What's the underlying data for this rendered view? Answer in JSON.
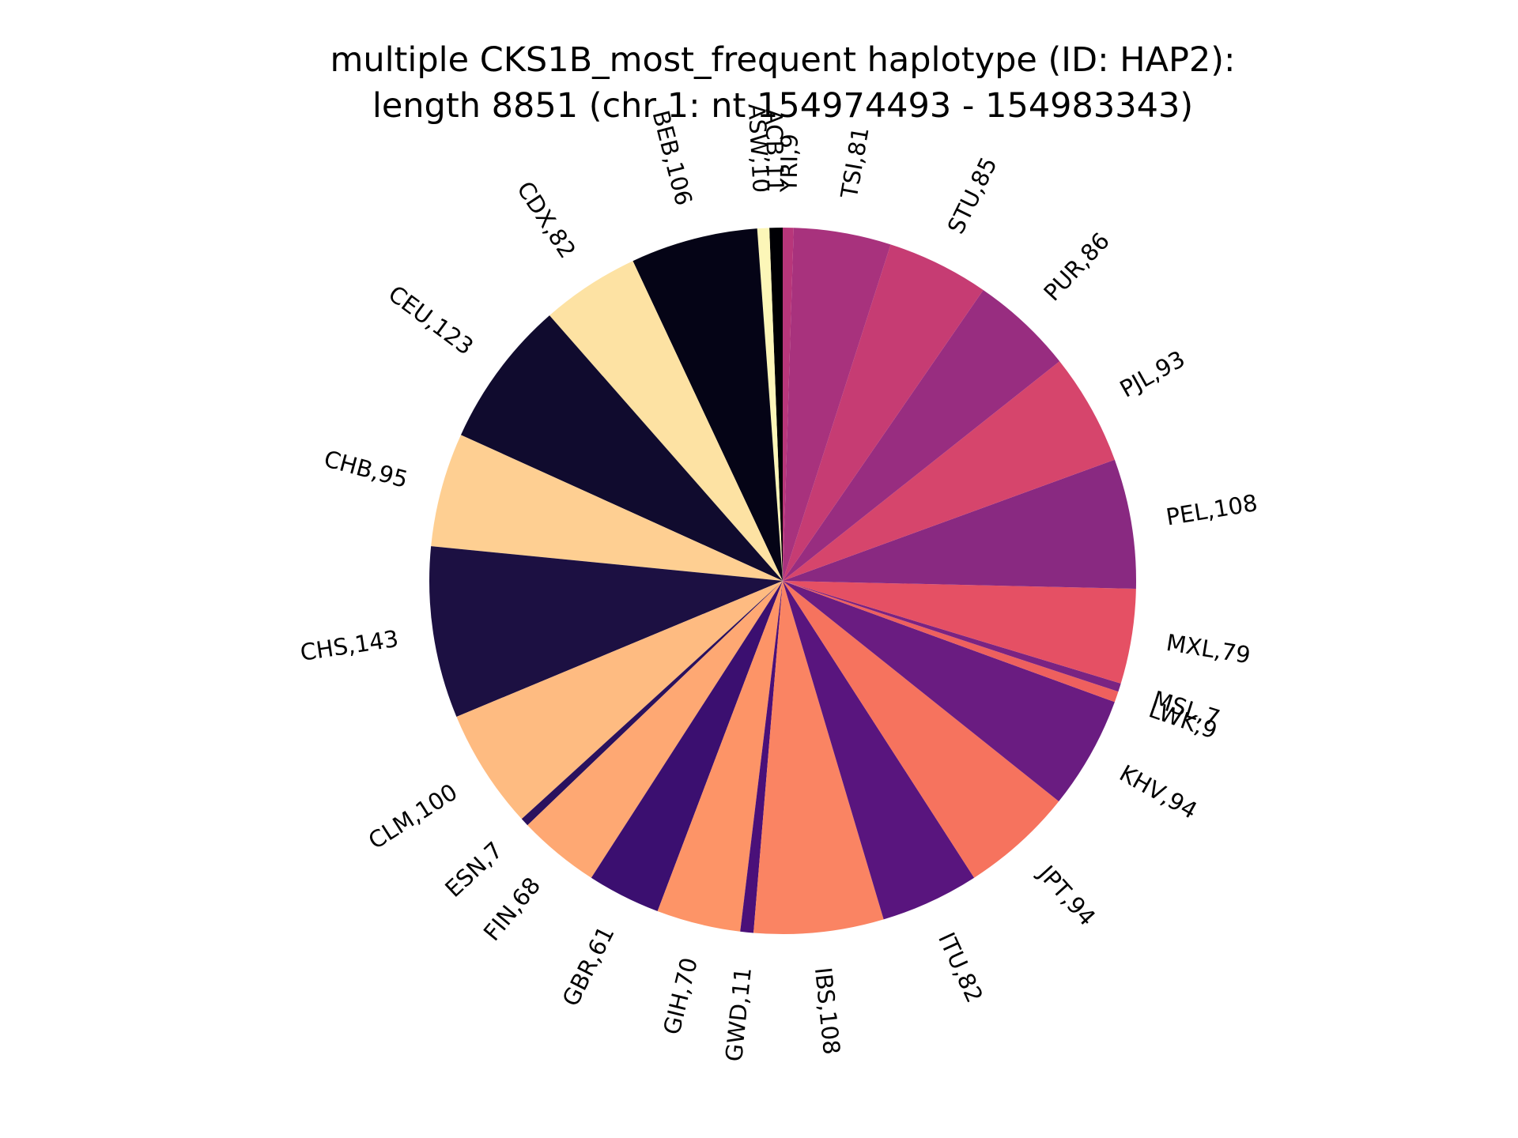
{
  "chart_data": {
    "type": "pie",
    "title": "multiple CKS1B_most_frequent haplotype (ID: HAP2):",
    "subtitle": "length 8851 (chr 1: nt 154974493 - 154983343)",
    "colormap": "magma",
    "slices": [
      {
        "label": "ACB,11",
        "value": 11,
        "color": "#000004"
      },
      {
        "label": "ASW,10",
        "value": 10,
        "color": "#fcf6b8"
      },
      {
        "label": "BEB,106",
        "value": 106,
        "color": "#050416"
      },
      {
        "label": "CDX,82",
        "value": 82,
        "color": "#fde2a3"
      },
      {
        "label": "CEU,123",
        "value": 123,
        "color": "#100b2e"
      },
      {
        "label": "CHB,95",
        "value": 95,
        "color": "#fecf92"
      },
      {
        "label": "CHS,143",
        "value": 143,
        "color": "#1c1042"
      },
      {
        "label": "CLM,100",
        "value": 100,
        "color": "#febb81"
      },
      {
        "label": "ESN,7",
        "value": 7,
        "color": "#2a115e"
      },
      {
        "label": "FIN,68",
        "value": 68,
        "color": "#fea873"
      },
      {
        "label": "GBR,61",
        "value": 61,
        "color": "#3b0f70"
      },
      {
        "label": "GIH,70",
        "value": 70,
        "color": "#fd9467"
      },
      {
        "label": "GWD,11",
        "value": 11,
        "color": "#4a1079"
      },
      {
        "label": "IBS,108",
        "value": 108,
        "color": "#fa8463"
      },
      {
        "label": "ITU,82",
        "value": 82,
        "color": "#59157e"
      },
      {
        "label": "JPT,94",
        "value": 94,
        "color": "#f6735e"
      },
      {
        "label": "KHV,94",
        "value": 94,
        "color": "#6a1c81"
      },
      {
        "label": "LWK,9",
        "value": 9,
        "color": "#ee605e"
      },
      {
        "label": "MSL,7",
        "value": 7,
        "color": "#7a2382"
      },
      {
        "label": "MXL,79",
        "value": 79,
        "color": "#e55064"
      },
      {
        "label": "PEL,108",
        "value": 108,
        "color": "#892981"
      },
      {
        "label": "PJL,93",
        "value": 93,
        "color": "#d6456c"
      },
      {
        "label": "PUR,86",
        "value": 86,
        "color": "#982d80"
      },
      {
        "label": "STU,85",
        "value": 85,
        "color": "#c63c73"
      },
      {
        "label": "TSI,81",
        "value": 81,
        "color": "#a8327d"
      },
      {
        "label": "YRI,9",
        "value": 9,
        "color": "#b8367a"
      }
    ]
  }
}
